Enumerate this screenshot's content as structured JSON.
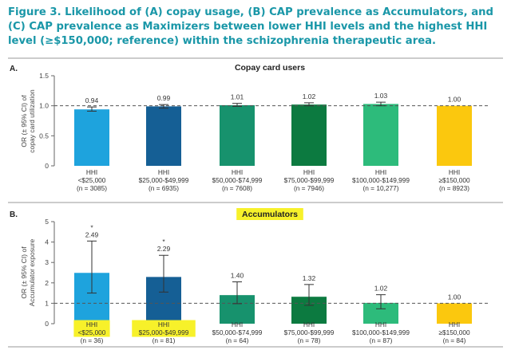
{
  "figure": {
    "title": "Figure 3. Likelihood of (A) copay usage, (B) CAP prevalence as Accumulators, and (C) CAP prevalence as Maximizers between lower HHI levels and the highest HHI level (≥$150,000; reference) within the schizophrenia therapeutic area.",
    "highlight_color": "#f7f12a",
    "reference_line_color": "#555555"
  },
  "chart_data": [
    {
      "type": "bar",
      "panel_label": "A.",
      "title": "Copay card users",
      "title_highlighted": false,
      "ylabel_line1": "OR (± 95% CI) of",
      "ylabel_line2": "copay card utilization",
      "ylim": [
        0,
        1.5
      ],
      "yticks": [
        0,
        0.5,
        1.0,
        1.5
      ],
      "ytick_labels": [
        "0",
        "0.5",
        "1.0",
        "1.5"
      ],
      "reference_line": 1.0,
      "categories": [
        {
          "line1": "HHI",
          "line2": "<$25,000",
          "line3": "(n = 3085)",
          "highlighted": false
        },
        {
          "line1": "HHI",
          "line2": "$25,000-$49,999",
          "line3": "(n = 6935)",
          "highlighted": false
        },
        {
          "line1": "HHI",
          "line2": "$50,000-$74,999",
          "line3": "(n = 7608)",
          "highlighted": false
        },
        {
          "line1": "HHI",
          "line2": "$75,000-$99,999",
          "line3": "(n = 7946)",
          "highlighted": false
        },
        {
          "line1": "HHI",
          "line2": "$100,000-$149,999",
          "line3": "(n = 10,277)",
          "highlighted": false
        },
        {
          "line1": "HHI",
          "line2": "≥$150,000",
          "line3": "(n = 8923)",
          "highlighted": false
        }
      ],
      "values": [
        0.94,
        0.99,
        1.01,
        1.02,
        1.03,
        1.0
      ],
      "value_labels": [
        "0.94",
        "0.99",
        "1.01",
        "1.02",
        "1.03",
        "1.00"
      ],
      "ci_low": [
        0.91,
        0.96,
        0.99,
        1.0,
        1.0,
        null
      ],
      "ci_high": [
        0.98,
        1.02,
        1.04,
        1.05,
        1.06,
        null
      ],
      "significance": [
        "",
        "",
        "",
        "",
        "",
        ""
      ],
      "colors": [
        "#1ea3dd",
        "#155f95",
        "#17926d",
        "#0c7a40",
        "#2dbb7b",
        "#fbc80e"
      ]
    },
    {
      "type": "bar",
      "panel_label": "B.",
      "title": "Accumulators",
      "title_highlighted": true,
      "ylabel_line1": "OR (± 95% CI) of",
      "ylabel_line2": "Accumulator exposure",
      "ylim": [
        0,
        5
      ],
      "yticks": [
        0,
        1,
        2,
        3,
        4,
        5
      ],
      "ytick_labels": [
        "0",
        "1",
        "2",
        "3",
        "4",
        "5"
      ],
      "reference_line": 1.0,
      "categories": [
        {
          "line1": "HHI",
          "line2": "<$25,000",
          "line3": "(n = 36)",
          "highlighted": true
        },
        {
          "line1": "HHI",
          "line2": "$25,000-$49,999",
          "line3": "(n = 81)",
          "highlighted": true
        },
        {
          "line1": "HHI",
          "line2": "$50,000-$74,999",
          "line3": "(n = 64)",
          "highlighted": false
        },
        {
          "line1": "HHI",
          "line2": "$75,000-$99,999",
          "line3": "(n = 78)",
          "highlighted": false
        },
        {
          "line1": "HHI",
          "line2": "$100,000-$149,999",
          "line3": "(n = 87)",
          "highlighted": false
        },
        {
          "line1": "HHI",
          "line2": "≥$150,000",
          "line3": "(n = 84)",
          "highlighted": false
        }
      ],
      "values": [
        2.49,
        2.29,
        1.4,
        1.32,
        1.02,
        1.0
      ],
      "value_labels": [
        "2.49",
        "2.29",
        "1.40",
        "1.32",
        "1.02",
        "1.00"
      ],
      "ci_low": [
        1.5,
        1.55,
        0.98,
        0.9,
        0.73,
        null
      ],
      "ci_high": [
        4.05,
        3.35,
        2.05,
        1.92,
        1.42,
        null
      ],
      "significance": [
        "*",
        "*",
        "",
        "",
        "",
        ""
      ],
      "colors": [
        "#1ea3dd",
        "#155f95",
        "#17926d",
        "#0c7a40",
        "#2dbb7b",
        "#fbc80e"
      ]
    }
  ]
}
